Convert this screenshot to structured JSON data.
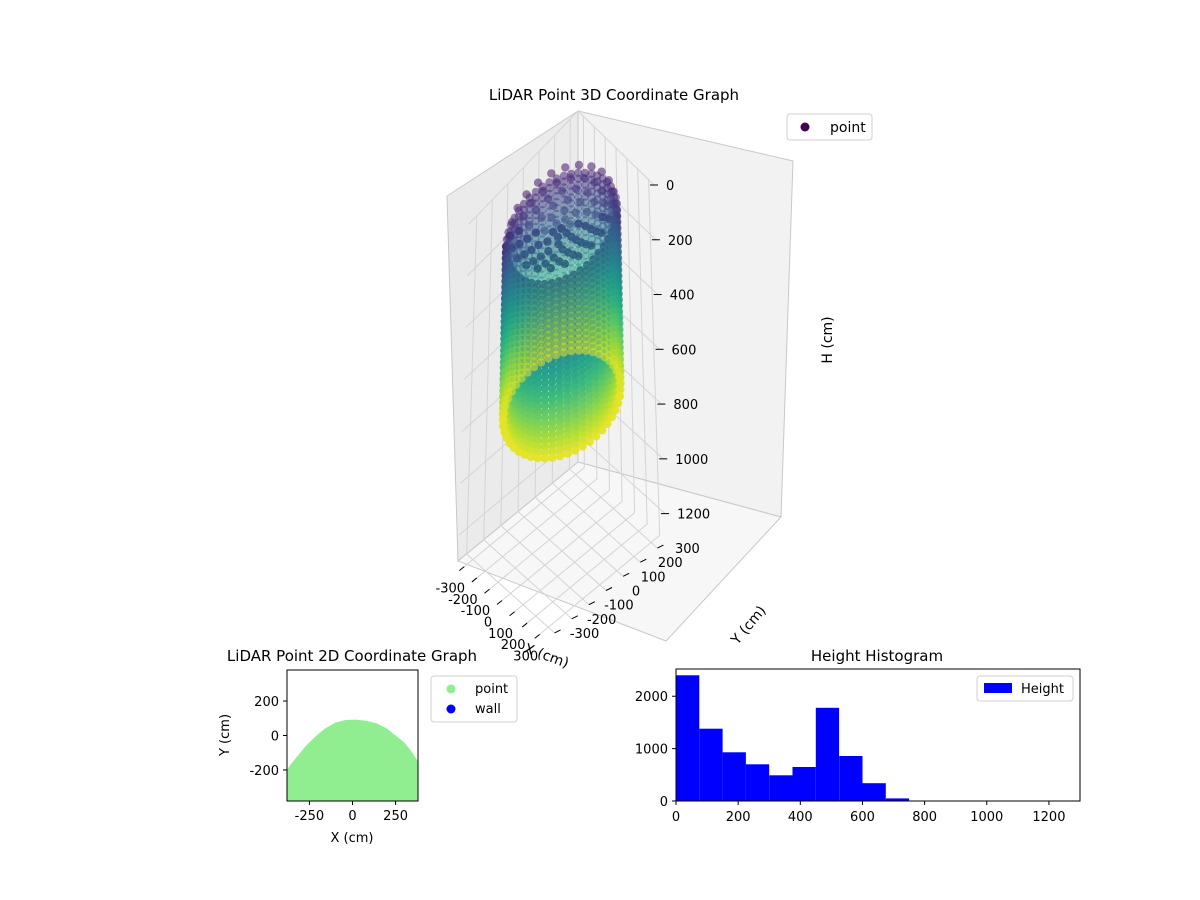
{
  "chart_data": [
    {
      "type": "scatter3d",
      "title": "LiDAR Point 3D Coordinate Graph",
      "xlabel": "X (cm)",
      "ylabel": "Y (cm)",
      "zlabel": "H (cm)",
      "x_ticks": [
        -300,
        -200,
        -100,
        0,
        100,
        200,
        300
      ],
      "y_ticks": [
        -300,
        -200,
        -100,
        0,
        100,
        200,
        300
      ],
      "z_ticks": [
        0,
        200,
        400,
        600,
        800,
        1000,
        1200
      ],
      "xlim": [
        -350,
        350
      ],
      "ylim": [
        -350,
        350
      ],
      "zlim": [
        1300,
        0
      ],
      "z_inverted": true,
      "colormap": "viridis",
      "grid": true,
      "legend": {
        "position": "top-right",
        "entries": [
          {
            "name": "point",
            "color": "#440154"
          }
        ]
      },
      "point_cloud": {
        "shape": "cylinder-with-dome",
        "radius_cm": 290,
        "height_range_cm": [
          0,
          750
        ]
      }
    },
    {
      "type": "scatter",
      "title": "LiDAR Point 2D Coordinate Graph",
      "xlabel": "X (cm)",
      "ylabel": "Y (cm)",
      "x_ticks": [
        -250,
        0,
        250
      ],
      "y_ticks": [
        -200,
        0,
        200
      ],
      "xlim": [
        -380,
        380
      ],
      "ylim": [
        -380,
        380
      ],
      "series": [
        {
          "name": "point",
          "color": "#90ee90"
        },
        {
          "name": "wall",
          "color": "#0000ff"
        }
      ],
      "legend": {
        "position": "outside-right"
      },
      "grid": false
    },
    {
      "type": "bar",
      "title": "Height Histogram",
      "xlabel": "",
      "ylabel": "",
      "bin_edges": [
        0,
        75,
        150,
        225,
        300,
        375,
        450,
        525,
        600,
        675,
        750
      ],
      "values": [
        2400,
        1380,
        930,
        700,
        490,
        650,
        1780,
        860,
        340,
        50
      ],
      "xlim": [
        0,
        1300
      ],
      "ylim": [
        0,
        2520
      ],
      "x_ticks": [
        0,
        200,
        400,
        600,
        800,
        1000,
        1200
      ],
      "y_ticks": [
        0,
        1000,
        2000
      ],
      "series": [
        {
          "name": "Height",
          "color": "#0000ff"
        }
      ],
      "legend": {
        "position": "top-right"
      },
      "grid": false
    }
  ]
}
